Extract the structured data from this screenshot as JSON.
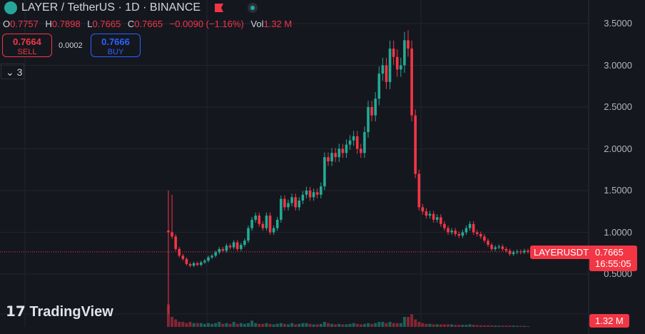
{
  "header": {
    "title": "LAYER / TetherUS · 1D · BINANCE"
  },
  "ohlc": {
    "o_label": "O",
    "o": "0.7757",
    "h_label": "H",
    "h": "0.7898",
    "l_label": "L",
    "l": "0.7665",
    "c_label": "C",
    "c": "0.7665",
    "change": "−0.0090 (−1.16%)",
    "vol_label": "Vol",
    "vol": "1.32 M"
  },
  "trade": {
    "sell_price": "0.7664",
    "sell_label": "SELL",
    "spread": "0.0002",
    "buy_price": "0.7666",
    "buy_label": "BUY"
  },
  "indicators_toggle": {
    "count": "3"
  },
  "branding": "TradingView",
  "colors": {
    "up": "#22ab94",
    "down": "#f23645",
    "bg": "#15171f",
    "grid": "#22252f"
  },
  "chart_data": {
    "type": "candlestick",
    "symbol_label": "LAYERUSDT",
    "last_price": "0.7665",
    "countdown": "16:55:05",
    "last_volume": "1.32 M",
    "y_ticks": [
      "3.5000",
      "3.0000",
      "2.5000",
      "2.0000",
      "1.5000",
      "1.0000",
      "0.5000"
    ],
    "ylim": [
      0.0,
      3.75
    ],
    "closes": [
      1.0,
      0.95,
      0.8,
      0.72,
      0.68,
      0.62,
      0.6,
      0.63,
      0.61,
      0.64,
      0.66,
      0.7,
      0.72,
      0.76,
      0.8,
      0.78,
      0.84,
      0.82,
      0.88,
      0.8,
      0.85,
      0.9,
      1.05,
      1.15,
      1.2,
      1.1,
      1.05,
      1.2,
      1.0,
      1.05,
      1.15,
      1.4,
      1.3,
      1.35,
      1.42,
      1.3,
      1.38,
      1.45,
      1.5,
      1.42,
      1.48,
      1.45,
      1.55,
      1.9,
      1.85,
      1.95,
      1.9,
      2.0,
      1.95,
      2.05,
      2.1,
      2.15,
      2.0,
      1.95,
      2.2,
      2.5,
      2.4,
      2.6,
      2.9,
      3.0,
      2.8,
      3.2,
      3.1,
      2.95,
      3.0,
      3.3,
      3.2,
      2.4,
      1.7,
      1.3,
      1.25,
      1.2,
      1.22,
      1.15,
      1.18,
      1.1,
      1.05,
      1.0,
      1.02,
      0.98,
      0.96,
      1.0,
      1.05,
      1.1,
      1.0,
      0.98,
      0.95,
      0.9,
      0.85,
      0.8,
      0.82,
      0.83,
      0.8,
      0.78,
      0.74,
      0.76,
      0.77,
      0.76,
      0.78,
      0.7665
    ],
    "volumes": [
      9,
      4,
      3,
      2,
      2,
      1.5,
      2,
      1.5,
      1.5,
      1.5,
      1.2,
      1.5,
      1.2,
      1.5,
      2,
      1.2,
      1.5,
      1.2,
      2,
      1.2,
      1.5,
      1.2,
      1.5,
      2.5,
      1.5,
      1.2,
      1.2,
      1.5,
      1.2,
      1,
      1.2,
      1.5,
      1.2,
      1,
      1.5,
      1,
      1.2,
      1.5,
      1.5,
      1.2,
      1,
      1,
      1.2,
      2,
      1.5,
      1.2,
      1,
      1.2,
      1,
      1,
      1.2,
      1.5,
      1.2,
      1,
      1.2,
      1.5,
      1.2,
      1.5,
      2,
      2,
      1.5,
      2,
      1.5,
      1.5,
      1.5,
      4,
      4,
      5,
      3,
      2,
      1.5,
      1.2,
      1.2,
      1,
      1,
      1,
      1,
      1,
      1,
      0.8,
      0.8,
      0.8,
      0.8,
      1,
      0.8,
      0.7,
      0.6,
      0.6,
      0.6,
      0.6,
      0.5,
      0.5,
      0.5,
      0.5,
      0.5,
      0.5,
      0.4,
      0.4,
      0.4,
      0.3
    ]
  }
}
